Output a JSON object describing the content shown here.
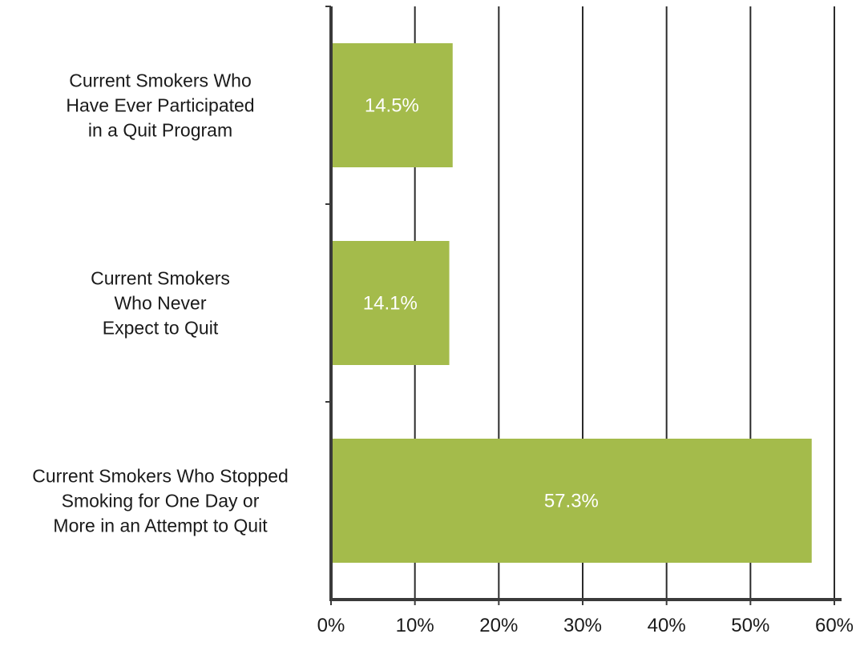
{
  "chart_data": {
    "type": "bar",
    "orientation": "horizontal",
    "categories": [
      [
        "Current Smokers Who",
        "Have Ever Participated",
        "in a Quit Program"
      ],
      [
        "Current Smokers",
        "Who Never",
        "Expect to Quit"
      ],
      [
        "Current Smokers Who Stopped",
        "Smoking for One Day or",
        "More in an Attempt to Quit"
      ]
    ],
    "values": [
      14.5,
      14.1,
      57.3
    ],
    "data_labels": [
      "14.5%",
      "14.1%",
      "57.3%"
    ],
    "xlim": [
      0,
      60
    ],
    "xticks": [
      0,
      10,
      20,
      30,
      40,
      50,
      60
    ],
    "xtick_labels": [
      "0%",
      "10%",
      "20%",
      "30%",
      "40%",
      "50%",
      "60%"
    ],
    "title": "",
    "xlabel": "",
    "ylabel": "",
    "grid": "vertical",
    "bar_color": "#a4bb4b",
    "legend": "none"
  }
}
